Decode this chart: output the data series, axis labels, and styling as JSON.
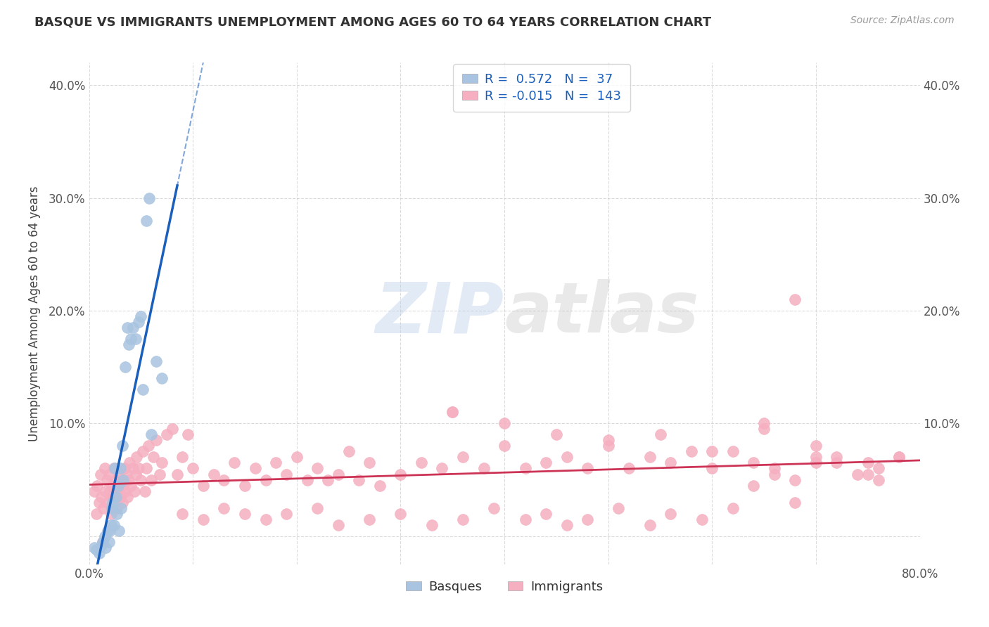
{
  "title": "BASQUE VS IMMIGRANTS UNEMPLOYMENT AMONG AGES 60 TO 64 YEARS CORRELATION CHART",
  "source": "Source: ZipAtlas.com",
  "ylabel": "Unemployment Among Ages 60 to 64 years",
  "xlim": [
    0.0,
    0.8
  ],
  "ylim": [
    -0.025,
    0.42
  ],
  "xticks": [
    0.0,
    0.1,
    0.2,
    0.3,
    0.4,
    0.5,
    0.6,
    0.7,
    0.8
  ],
  "xticklabels": [
    "0.0%",
    "",
    "",
    "",
    "",
    "",
    "",
    "",
    "80.0%"
  ],
  "yticks": [
    0.0,
    0.1,
    0.2,
    0.3,
    0.4
  ],
  "yticklabels": [
    "",
    "10.0%",
    "20.0%",
    "30.0%",
    "40.0%"
  ],
  "yticks_right": [
    0.1,
    0.2,
    0.3,
    0.4
  ],
  "yticklabels_right": [
    "10.0%",
    "20.0%",
    "30.0%",
    "40.0%"
  ],
  "basque_R": 0.572,
  "basque_N": 37,
  "immigrant_R": -0.015,
  "immigrant_N": 143,
  "basque_color": "#a8c4e0",
  "basque_line_color": "#1a5fbb",
  "immigrant_color": "#f5afc0",
  "immigrant_line_color": "#cc3355",
  "background_color": "#ffffff",
  "grid_color": "#cccccc",
  "title_color": "#333333",
  "legend_text_color": "#1a5fbb",
  "watermark_zip": "ZIP",
  "watermark_atlas": "atlas",
  "basque_x": [
    0.005,
    0.007,
    0.01,
    0.012,
    0.013,
    0.015,
    0.016,
    0.018,
    0.019,
    0.02,
    0.021,
    0.022,
    0.023,
    0.024,
    0.025,
    0.026,
    0.027,
    0.028,
    0.029,
    0.03,
    0.031,
    0.032,
    0.033,
    0.035,
    0.037,
    0.038,
    0.04,
    0.042,
    0.045,
    0.048,
    0.05,
    0.052,
    0.055,
    0.058,
    0.06,
    0.065,
    0.07
  ],
  "basque_y": [
    -0.01,
    -0.012,
    -0.015,
    -0.008,
    -0.005,
    0.0,
    -0.01,
    0.005,
    -0.005,
    0.005,
    0.01,
    0.025,
    0.03,
    0.01,
    0.06,
    0.035,
    0.02,
    0.045,
    0.005,
    0.06,
    0.025,
    0.08,
    0.05,
    0.15,
    0.185,
    0.17,
    0.175,
    0.185,
    0.175,
    0.19,
    0.195,
    0.13,
    0.28,
    0.3,
    0.09,
    0.155,
    0.14
  ],
  "immigrant_x": [
    0.005,
    0.007,
    0.008,
    0.01,
    0.011,
    0.012,
    0.013,
    0.014,
    0.015,
    0.016,
    0.017,
    0.018,
    0.019,
    0.02,
    0.021,
    0.022,
    0.023,
    0.024,
    0.025,
    0.026,
    0.027,
    0.028,
    0.029,
    0.03,
    0.031,
    0.032,
    0.033,
    0.034,
    0.035,
    0.036,
    0.037,
    0.038,
    0.039,
    0.04,
    0.042,
    0.044,
    0.045,
    0.046,
    0.048,
    0.05,
    0.052,
    0.054,
    0.055,
    0.057,
    0.06,
    0.062,
    0.065,
    0.068,
    0.07,
    0.075,
    0.08,
    0.085,
    0.09,
    0.095,
    0.1,
    0.11,
    0.12,
    0.13,
    0.14,
    0.15,
    0.16,
    0.17,
    0.18,
    0.19,
    0.2,
    0.21,
    0.22,
    0.23,
    0.24,
    0.25,
    0.26,
    0.27,
    0.28,
    0.3,
    0.32,
    0.34,
    0.35,
    0.36,
    0.38,
    0.4,
    0.42,
    0.44,
    0.46,
    0.48,
    0.5,
    0.52,
    0.54,
    0.56,
    0.58,
    0.6,
    0.62,
    0.64,
    0.66,
    0.68,
    0.7,
    0.72,
    0.74,
    0.76,
    0.78,
    0.35,
    0.4,
    0.45,
    0.5,
    0.55,
    0.6,
    0.65,
    0.7,
    0.75,
    0.65,
    0.68,
    0.72,
    0.75,
    0.76,
    0.78,
    0.7,
    0.68,
    0.66,
    0.64,
    0.62,
    0.59,
    0.56,
    0.54,
    0.51,
    0.48,
    0.46,
    0.44,
    0.42,
    0.39,
    0.36,
    0.33,
    0.3,
    0.27,
    0.24,
    0.22,
    0.19,
    0.17,
    0.15,
    0.13,
    0.11,
    0.09
  ],
  "immigrant_y": [
    0.04,
    0.02,
    0.045,
    0.03,
    0.055,
    0.035,
    -0.005,
    0.025,
    0.06,
    0.04,
    0.05,
    0.03,
    0.055,
    0.04,
    0.02,
    0.035,
    0.045,
    0.06,
    0.035,
    0.05,
    0.025,
    0.04,
    0.055,
    0.035,
    0.05,
    0.03,
    0.045,
    0.06,
    0.04,
    0.055,
    0.035,
    0.05,
    0.065,
    0.045,
    0.06,
    0.04,
    0.055,
    0.07,
    0.06,
    0.05,
    0.075,
    0.04,
    0.06,
    0.08,
    0.05,
    0.07,
    0.085,
    0.055,
    0.065,
    0.09,
    0.095,
    0.055,
    0.07,
    0.09,
    0.06,
    0.045,
    0.055,
    0.05,
    0.065,
    0.045,
    0.06,
    0.05,
    0.065,
    0.055,
    0.07,
    0.05,
    0.06,
    0.05,
    0.055,
    0.075,
    0.05,
    0.065,
    0.045,
    0.055,
    0.065,
    0.06,
    0.11,
    0.07,
    0.06,
    0.08,
    0.06,
    0.065,
    0.07,
    0.06,
    0.08,
    0.06,
    0.07,
    0.065,
    0.075,
    0.06,
    0.075,
    0.065,
    0.06,
    0.05,
    0.07,
    0.065,
    0.055,
    0.06,
    0.07,
    0.11,
    0.1,
    0.09,
    0.085,
    0.09,
    0.075,
    0.095,
    0.08,
    0.065,
    0.1,
    0.21,
    0.07,
    0.055,
    0.05,
    0.07,
    0.065,
    0.03,
    0.055,
    0.045,
    0.025,
    0.015,
    0.02,
    0.01,
    0.025,
    0.015,
    0.01,
    0.02,
    0.015,
    0.025,
    0.015,
    0.01,
    0.02,
    0.015,
    0.01,
    0.025,
    0.02,
    0.015,
    0.02,
    0.025,
    0.015,
    0.02
  ]
}
